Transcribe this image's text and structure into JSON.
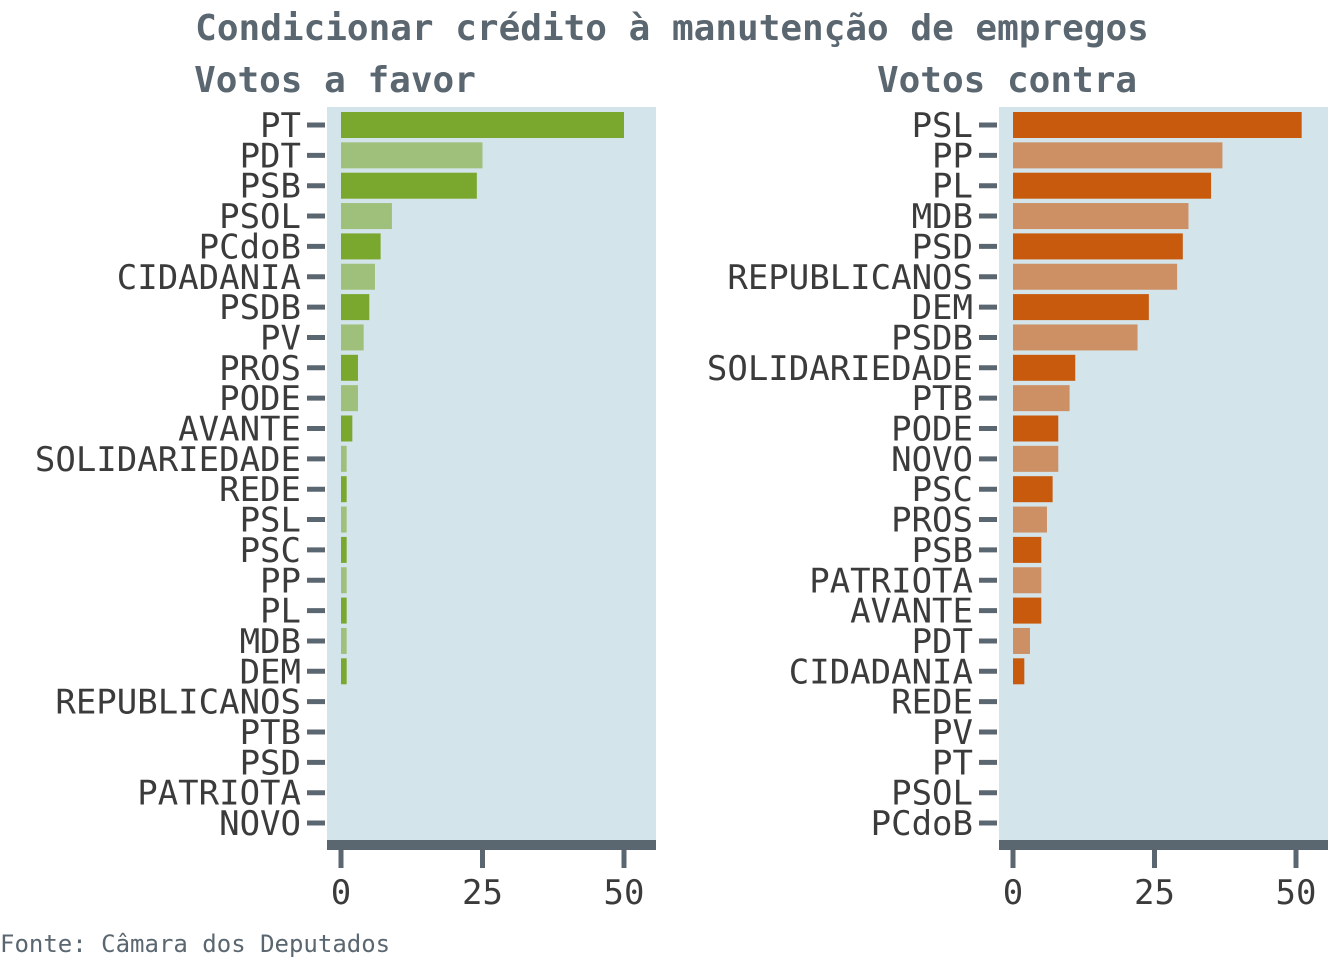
{
  "figure": {
    "title": "Condicionar crédito à manutenção de empregos",
    "source": "Fonte: Câmara dos Deputados"
  },
  "chart_data": [
    {
      "type": "bar",
      "orientation": "horizontal",
      "title": "Votos a favor",
      "categories": [
        "PT",
        "PDT",
        "PSB",
        "PSOL",
        "PCdoB",
        "CIDADANIA",
        "PSDB",
        "PV",
        "PROS",
        "PODE",
        "AVANTE",
        "SOLIDARIEDADE",
        "REDE",
        "PSL",
        "PSC",
        "PP",
        "PL",
        "MDB",
        "DEM",
        "REPUBLICANOS",
        "PTB",
        "PSD",
        "PATRIOTA",
        "NOVO"
      ],
      "values": [
        50,
        25,
        24,
        9,
        7,
        6,
        5,
        4,
        3,
        3,
        2,
        1,
        1,
        1,
        1,
        1,
        1,
        1,
        1,
        0,
        0,
        0,
        0,
        0
      ],
      "xlim": [
        0,
        55
      ],
      "xticks": [
        0,
        25,
        50
      ],
      "colors": [
        "#7aa82e",
        "#9fc07a"
      ]
    },
    {
      "type": "bar",
      "orientation": "horizontal",
      "title": "Votos contra",
      "categories": [
        "PSL",
        "PP",
        "PL",
        "MDB",
        "PSD",
        "REPUBLICANOS",
        "DEM",
        "PSDB",
        "SOLIDARIEDADE",
        "PTB",
        "PODE",
        "NOVO",
        "PSC",
        "PROS",
        "PSB",
        "PATRIOTA",
        "AVANTE",
        "PDT",
        "CIDADANIA",
        "REDE",
        "PV",
        "PT",
        "PSOL",
        "PCdoB"
      ],
      "values": [
        51,
        37,
        35,
        31,
        30,
        29,
        24,
        22,
        11,
        10,
        8,
        8,
        7,
        6,
        5,
        5,
        5,
        3,
        2,
        0,
        0,
        0,
        0,
        0
      ],
      "xlim": [
        0,
        55
      ],
      "xticks": [
        0,
        25,
        50
      ],
      "colors": [
        "#c75a0c",
        "#cc9064"
      ]
    }
  ],
  "style": {
    "panel_bg": "#d4e4eb",
    "axis_color": "#5b6770"
  }
}
